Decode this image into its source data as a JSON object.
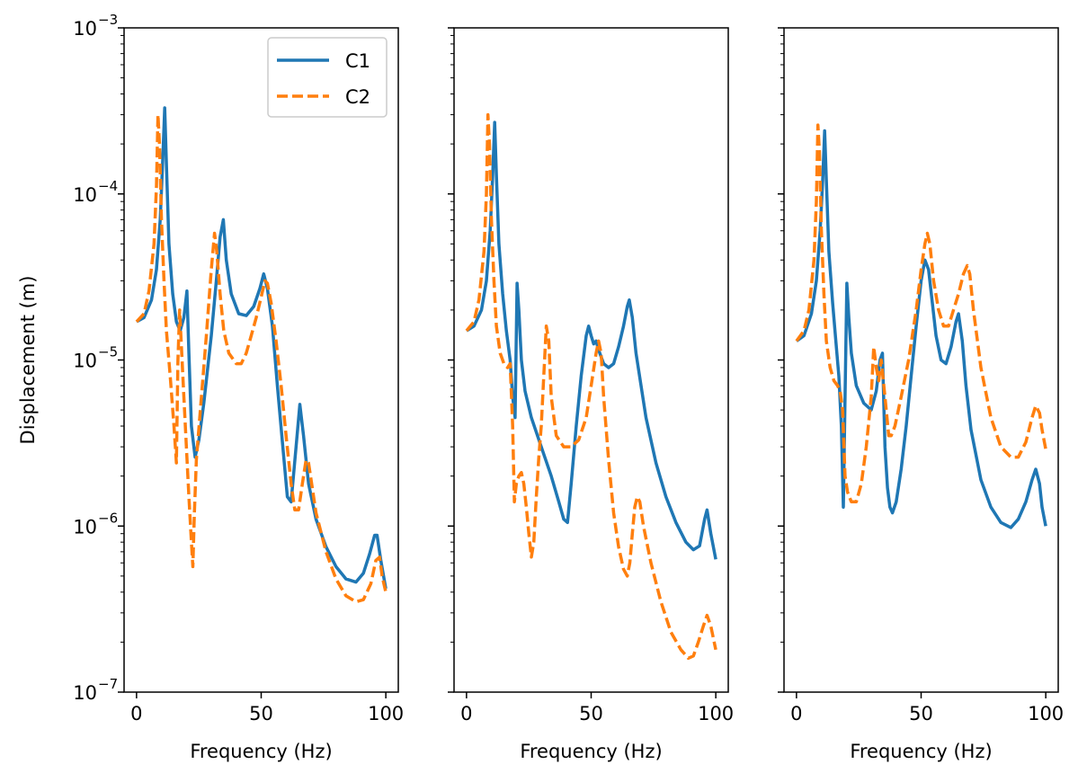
{
  "chart_data": [
    {
      "type": "line",
      "panel": 1,
      "xlabel": "Frequency (Hz)",
      "ylabel": "Displacement (m)",
      "xlim": [
        -5,
        105
      ],
      "ylim": [
        1e-07,
        0.001
      ],
      "yscale": "log",
      "xticks": [
        0,
        50,
        100
      ],
      "yticks": [
        1e-07,
        1e-06,
        1e-05,
        0.0001,
        0.001
      ],
      "ytick_labels": [
        "10",
        "10",
        "10",
        "10",
        "10"
      ],
      "ytick_exponents": [
        "−7",
        "−6",
        "−5",
        "−4",
        "−3"
      ],
      "legend": {
        "position": "upper right",
        "entries": [
          "C1",
          "C2"
        ]
      },
      "series": [
        {
          "name": "C1",
          "color": "#1f77b4",
          "style": "solid",
          "x": [
            0,
            3,
            6,
            8,
            9.5,
            10.5,
            11.3,
            12,
            13,
            14.5,
            16,
            17.5,
            19,
            20.2,
            21,
            22,
            23.5,
            25,
            27,
            30,
            32,
            33.5,
            34.8,
            36,
            38,
            41,
            44,
            47,
            49.5,
            51,
            52.5,
            54.5,
            56.5,
            58.5,
            60.5,
            62,
            64,
            65.5,
            67,
            69,
            72,
            76,
            80,
            84,
            88,
            91,
            93.5,
            95.5,
            96.5,
            98,
            100
          ],
          "y": [
            1.7e-05,
            1.8e-05,
            2.3e-05,
            3.5e-05,
            7e-05,
            0.00016,
            0.00033,
            0.00015,
            5e-05,
            2.5e-05,
            1.7e-05,
            1.5e-05,
            1.8e-05,
            2.6e-05,
            1.1e-05,
            4e-06,
            2.6e-06,
            3.3e-06,
            5.5e-06,
            1.4e-05,
            3e-05,
            5.5e-05,
            7e-05,
            4e-05,
            2.5e-05,
            1.9e-05,
            1.85e-05,
            2.1e-05,
            2.7e-05,
            3.3e-05,
            2.7e-05,
            1.6e-05,
            7e-06,
            3.2e-06,
            1.5e-06,
            1.4e-06,
            3e-06,
            5.4e-06,
            3.5e-06,
            1.8e-06,
            1.1e-06,
            7.5e-07,
            5.7e-07,
            4.8e-07,
            4.6e-07,
            5.2e-07,
            6.8e-07,
            8.8e-07,
            8.8e-07,
            6.2e-07,
            4.2e-07
          ]
        },
        {
          "name": "C2",
          "color": "#ff7f0e",
          "style": "dashed",
          "x": [
            0,
            3,
            5,
            7,
            8,
            8.6,
            9.2,
            10,
            11,
            12,
            13.5,
            15,
            16,
            16.6,
            17.3,
            18,
            19,
            20,
            21,
            22,
            22.6,
            23.2,
            24,
            26,
            28,
            30,
            31.3,
            32.2,
            33.5,
            35,
            37,
            40,
            42,
            44,
            46,
            48,
            50,
            51.5,
            52.5,
            54,
            56,
            58,
            60,
            62,
            63.5,
            65,
            66.5,
            68,
            69,
            70,
            72,
            76,
            80,
            84,
            88,
            91,
            94,
            96,
            97.5,
            98.5,
            100
          ],
          "y": [
            1.7e-05,
            1.9e-05,
            2.6e-05,
            5e-05,
            0.00011,
            0.0003,
            0.0002,
            7e-05,
            3e-05,
            1.5e-05,
            8e-06,
            4e-06,
            2.4e-06,
            1e-05,
            2e-05,
            1.2e-05,
            6e-06,
            3e-06,
            1.5e-06,
            8e-07,
            5.7e-07,
            1.2e-06,
            2.5e-06,
            6e-06,
            1.4e-05,
            3.5e-05,
            5.8e-05,
            4.5e-05,
            2.5e-05,
            1.5e-05,
            1.1e-05,
            9.5e-06,
            9.5e-06,
            1.1e-05,
            1.4e-05,
            1.8e-05,
            2.4e-05,
            3e-05,
            2.9e-05,
            2.2e-05,
            1.3e-05,
            7e-06,
            3.5e-06,
            1.8e-06,
            1.25e-06,
            1.25e-06,
            1.8e-06,
            2.5e-06,
            2.4e-06,
            1.9e-06,
            1.2e-06,
            7e-07,
            4.8e-07,
            3.8e-07,
            3.5e-07,
            3.6e-07,
            4.5e-07,
            6.2e-07,
            6.5e-07,
            5e-07,
            4e-07
          ]
        }
      ]
    },
    {
      "type": "line",
      "panel": 2,
      "xlabel": "Frequency (Hz)",
      "ylabel": "",
      "xlim": [
        -5,
        105
      ],
      "ylim": [
        1e-07,
        0.001
      ],
      "yscale": "log",
      "xticks": [
        0,
        50,
        100
      ],
      "series": [
        {
          "name": "C1",
          "color": "#1f77b4",
          "style": "solid",
          "x": [
            0,
            3,
            6,
            8,
            9.5,
            10.5,
            11.3,
            12,
            13,
            14.5,
            16,
            17.5,
            18.5,
            19.5,
            20.3,
            21,
            22,
            23.5,
            26,
            30,
            34,
            37,
            39,
            40.5,
            42,
            44,
            46,
            48,
            49,
            50,
            51,
            52,
            53,
            55,
            57,
            59,
            61,
            63,
            64.5,
            65.3,
            66.5,
            68,
            72,
            76,
            80,
            84,
            88,
            91,
            93.5,
            95.5,
            96.5,
            98,
            100
          ],
          "y": [
            1.5e-05,
            1.6e-05,
            2e-05,
            3e-05,
            6e-05,
            0.00013,
            0.00027,
            0.00013,
            5e-05,
            2.5e-05,
            1.5e-05,
            1e-05,
            6e-06,
            4.5e-06,
            2.9e-05,
            2e-05,
            1e-05,
            6.5e-06,
            4.5e-06,
            3e-06,
            2e-06,
            1.4e-06,
            1.1e-06,
            1.05e-06,
            1.8e-06,
            4e-06,
            8e-06,
            1.4e-05,
            1.6e-05,
            1.4e-05,
            1.25e-05,
            1.3e-05,
            1.15e-05,
            9.5e-06,
            9e-06,
            9.5e-06,
            1.2e-05,
            1.6e-05,
            2.1e-05,
            2.3e-05,
            1.8e-05,
            1.1e-05,
            4.5e-06,
            2.4e-06,
            1.5e-06,
            1.05e-06,
            8e-07,
            7.2e-07,
            7.6e-07,
            1.1e-06,
            1.25e-06,
            9e-07,
            6.3e-07
          ]
        },
        {
          "name": "C2",
          "color": "#ff7f0e",
          "style": "dashed",
          "x": [
            0,
            3,
            5,
            7,
            8,
            8.6,
            9.2,
            10,
            11,
            12,
            13.5,
            15,
            16.5,
            17.5,
            18.5,
            19.2,
            20,
            21,
            22,
            23,
            24,
            25,
            26,
            27,
            28,
            29,
            30,
            31,
            32,
            33,
            34,
            36,
            39,
            42,
            45,
            48,
            50,
            52,
            53,
            54,
            55,
            57,
            59,
            61,
            63,
            64.5,
            65.5,
            66.5,
            67.5,
            68.5,
            69.5,
            71,
            74,
            78,
            82,
            86,
            89,
            91,
            93,
            95,
            96.5,
            98,
            100
          ],
          "y": [
            1.5e-05,
            1.7e-05,
            2.3e-05,
            4.5e-05,
            0.0001,
            0.0003,
            0.0002,
            7e-05,
            3e-05,
            1.6e-05,
            1.1e-05,
            9.5e-06,
            9e-06,
            9.5e-06,
            4e-06,
            1.4e-06,
            1.8e-06,
            2e-06,
            2.1e-06,
            1.8e-06,
            1.3e-06,
            9e-07,
            6.5e-07,
            8e-07,
            1.5e-06,
            2.6e-06,
            4e-06,
            8e-06,
            1.6e-05,
            1.3e-05,
            6e-06,
            3.5e-06,
            3e-06,
            3e-06,
            3.3e-06,
            4.5e-06,
            7e-06,
            1.1e-05,
            1.3e-05,
            1.1e-05,
            6e-06,
            2.5e-06,
            1.2e-06,
            7.5e-07,
            5.5e-07,
            5e-07,
            6e-07,
            9e-07,
            1.3e-06,
            1.5e-06,
            1.4e-06,
            1e-06,
            6e-07,
            3.5e-07,
            2.3e-07,
            1.8e-07,
            1.6e-07,
            1.65e-07,
            2e-07,
            2.5e-07,
            2.9e-07,
            2.5e-07,
            1.8e-07
          ]
        }
      ]
    },
    {
      "type": "line",
      "panel": 3,
      "xlabel": "Frequency (Hz)",
      "ylabel": "",
      "xlim": [
        -5,
        105
      ],
      "ylim": [
        1e-07,
        0.001
      ],
      "yscale": "log",
      "xticks": [
        0,
        50,
        100
      ],
      "series": [
        {
          "name": "C1",
          "color": "#1f77b4",
          "style": "solid",
          "x": [
            0,
            3,
            6,
            8,
            9.5,
            10.5,
            11.3,
            12,
            13,
            14.5,
            16,
            17,
            18,
            18.8,
            19.5,
            20.2,
            21,
            22,
            24,
            27,
            30,
            32,
            33.5,
            34.5,
            35.5,
            36.5,
            37.5,
            38.5,
            40,
            42,
            44,
            46,
            48,
            50,
            51.5,
            53,
            54.5,
            56,
            58,
            60,
            62,
            64,
            65,
            66.5,
            68,
            70,
            74,
            78,
            82,
            86,
            89,
            92,
            94.5,
            96,
            97.5,
            98.5,
            100
          ],
          "y": [
            1.3e-05,
            1.4e-05,
            1.9e-05,
            3e-05,
            6e-05,
            0.00012,
            0.00024,
            0.00012,
            4.5e-05,
            2.2e-05,
            1.2e-05,
            8e-06,
            4e-06,
            1.3e-06,
            6e-06,
            2.9e-05,
            1.8e-05,
            1.1e-05,
            7e-06,
            5.5e-06,
            5e-06,
            6.5e-06,
            1e-05,
            1.1e-05,
            3e-06,
            1.7e-06,
            1.3e-06,
            1.2e-06,
            1.4e-06,
            2.2e-06,
            4e-06,
            8e-06,
            1.6e-05,
            3e-05,
            4e-05,
            3.5e-05,
            2.2e-05,
            1.4e-05,
            1e-05,
            9.5e-06,
            1.2e-05,
            1.7e-05,
            1.9e-05,
            1.3e-05,
            7e-06,
            3.8e-06,
            1.9e-06,
            1.3e-06,
            1.05e-06,
            9.8e-07,
            1.1e-06,
            1.4e-06,
            1.9e-06,
            2.2e-06,
            1.8e-06,
            1.3e-06,
            1e-06
          ]
        },
        {
          "name": "C2",
          "color": "#ff7f0e",
          "style": "dashed",
          "x": [
            0,
            3,
            5,
            7,
            8,
            8.6,
            9.2,
            10,
            11,
            12,
            13.5,
            15,
            16.5,
            17.5,
            18.5,
            19.5,
            20.5,
            22,
            24,
            26,
            28,
            30,
            31,
            32,
            33,
            34,
            35.5,
            37,
            38,
            39.5,
            42,
            45,
            48,
            50,
            51.5,
            52.5,
            53.5,
            55,
            57,
            59,
            61,
            63,
            65,
            67,
            68.5,
            69.5,
            71,
            74,
            78,
            82,
            86,
            89,
            92,
            94.5,
            96,
            97.5,
            98.5,
            100
          ],
          "y": [
            1.3e-05,
            1.5e-05,
            2e-05,
            4e-05,
            9e-05,
            0.00026,
            0.00018,
            6e-05,
            2.5e-05,
            1.3e-05,
            9e-06,
            7.5e-06,
            7e-06,
            6.5e-06,
            5e-06,
            2e-06,
            1.6e-06,
            1.4e-06,
            1.4e-06,
            1.8e-06,
            3e-06,
            6e-06,
            1.2e-05,
            9e-06,
            7.5e-06,
            1e-05,
            6e-06,
            3.5e-06,
            3.5e-06,
            4e-06,
            6e-06,
            1e-05,
            2e-05,
            3.5e-05,
            5e-05,
            5.8e-05,
            5e-05,
            3e-05,
            2e-05,
            1.6e-05,
            1.6e-05,
            2e-05,
            2.5e-05,
            3.3e-05,
            3.7e-05,
            3.3e-05,
            2e-05,
            9e-06,
            4.5e-06,
            3e-06,
            2.6e-06,
            2.6e-06,
            3.2e-06,
            4.5e-06,
            5.3e-06,
            4.8e-06,
            3.8e-06,
            2.9e-06
          ]
        }
      ]
    }
  ]
}
